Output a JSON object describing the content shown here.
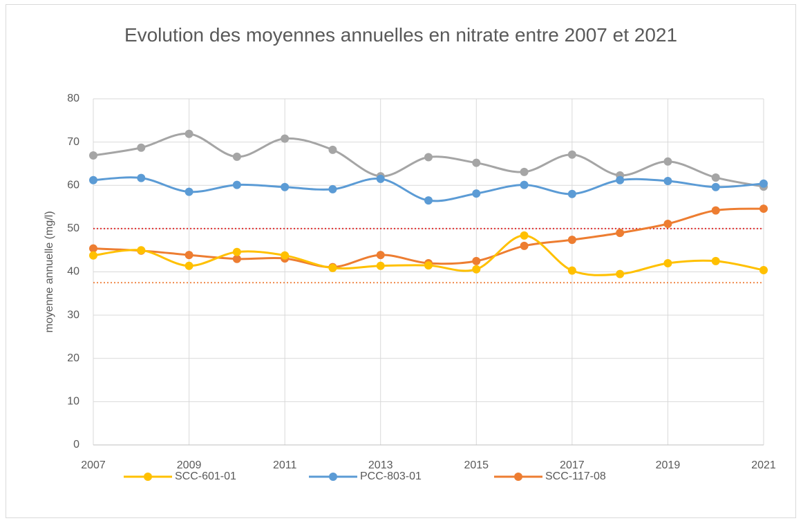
{
  "chart_data": {
    "type": "line",
    "title": "Evolution des moyennes annuelles en nitrate entre 2007 et 2021",
    "y_label": "moyenne annuelle (mg/l)",
    "x": [
      2007,
      2008,
      2009,
      2010,
      2011,
      2012,
      2013,
      2014,
      2015,
      2016,
      2017,
      2018,
      2019,
      2020,
      2021
    ],
    "xlim": [
      2007,
      2021
    ],
    "xticks": [
      2007,
      2009,
      2011,
      2013,
      2015,
      2017,
      2019,
      2021
    ],
    "ylim": [
      0,
      80
    ],
    "yticks": [
      0,
      10,
      20,
      30,
      40,
      50,
      60,
      70,
      80
    ],
    "grid": true,
    "smooth": true,
    "legend": "bottom",
    "series": [
      {
        "name": "SCC-601-01",
        "color": "#ffc000",
        "values": [
          43.8,
          45.0,
          41.4,
          44.6,
          43.8,
          40.9,
          41.4,
          41.5,
          40.6,
          48.4,
          40.3,
          39.5,
          42.0,
          42.5,
          40.4
        ]
      },
      {
        "name": "PCC-803-01",
        "color": "#5b9bd5",
        "values": [
          61.2,
          61.7,
          58.5,
          60.1,
          59.6,
          59.1,
          61.5,
          56.5,
          58.1,
          60.1,
          58.0,
          61.2,
          61.0,
          59.6,
          60.4
        ]
      },
      {
        "name": "SCC-117-08",
        "color": "#ed7d31",
        "values": [
          45.4,
          44.9,
          43.9,
          43.0,
          43.1,
          41.1,
          43.9,
          42.0,
          42.5,
          46.0,
          47.4,
          49.0,
          51.1,
          54.2,
          54.6
        ]
      },
      {
        "color": "#a5a5a5",
        "values": [
          66.9,
          68.7,
          71.9,
          66.6,
          70.8,
          68.2,
          62.1,
          66.5,
          65.2,
          63.1,
          67.1,
          62.3,
          65.5,
          61.8,
          59.7
        ]
      }
    ],
    "reference_lines": [
      {
        "value": 50,
        "color": "#e03030"
      },
      {
        "value": 37.5,
        "color": "#f08a4b"
      }
    ]
  }
}
